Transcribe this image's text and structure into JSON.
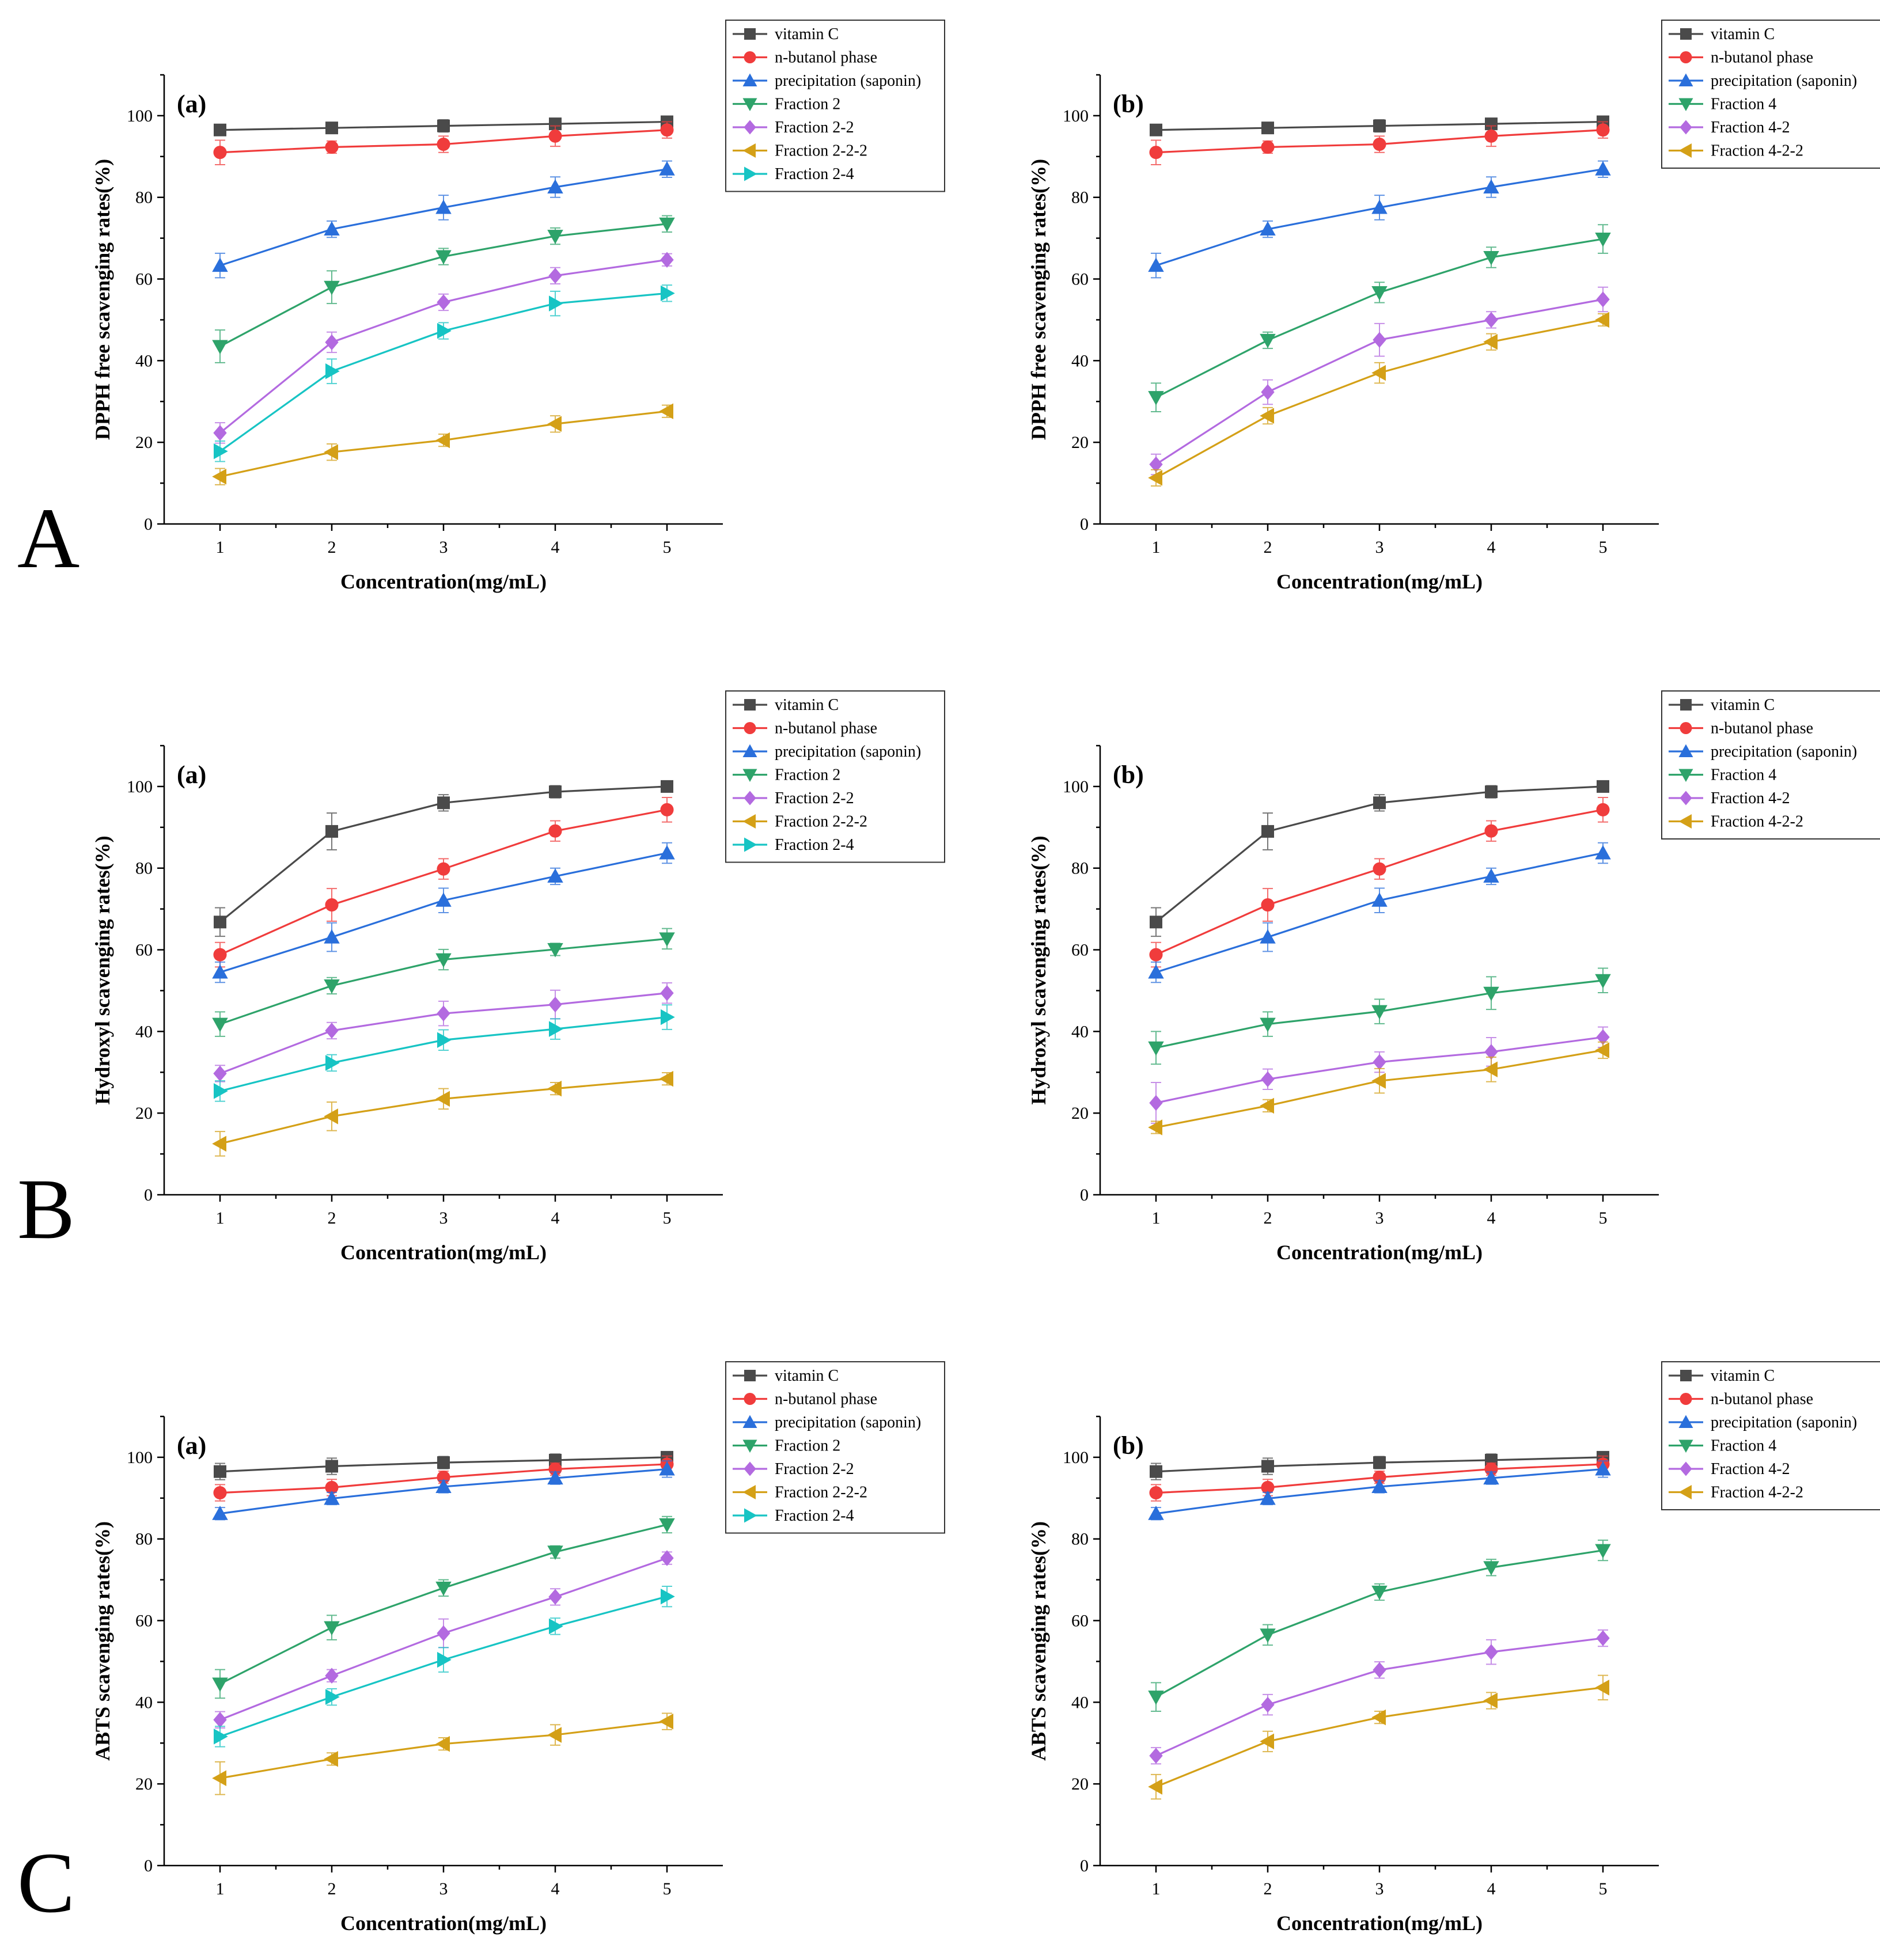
{
  "figure": {
    "x_label": "Concentration(mg/mL)",
    "x_ticks": [
      "1",
      "2",
      "3",
      "4",
      "5"
    ],
    "y_ticks": [
      "0",
      "20",
      "40",
      "60",
      "80",
      "100"
    ]
  },
  "colors": {
    "vitamin C": "#4a4a4a",
    "n-butanol phase": "#f03c3c",
    "precipitation (saponin)": "#2a6fdb",
    "Fraction 2": "#2ea36a",
    "Fraction 4": "#2ea36a",
    "Fraction 2-2": "#b36ae0",
    "Fraction 4-2": "#b36ae0",
    "Fraction 2-2-2": "#d4a017",
    "Fraction 4-2-2": "#d4a017",
    "Fraction 2-4": "#17c4c4"
  },
  "markers": {
    "vitamin C": "square",
    "n-butanol phase": "circle",
    "precipitation (saponin)": "triangle-up",
    "Fraction 2": "triangle-down",
    "Fraction 4": "triangle-down",
    "Fraction 2-2": "diamond",
    "Fraction 4-2": "diamond",
    "Fraction 2-2-2": "triangle-left",
    "Fraction 4-2-2": "triangle-left",
    "Fraction 2-4": "triangle-right"
  },
  "chart_data": [
    {
      "type": "line",
      "row": "A",
      "panel": "(a)",
      "title": "",
      "xlabel": "Concentration(mg/mL)",
      "ylabel": "DPPH free scavenging rates(%)",
      "x": [
        1,
        2,
        3,
        4,
        5
      ],
      "xlim": [
        0.5,
        5.5
      ],
      "ylim": [
        0,
        110
      ],
      "legend_position": "top-right outside",
      "series": [
        {
          "name": "vitamin C",
          "values": [
            96.5,
            97.0,
            97.5,
            98.0,
            98.5
          ],
          "errors": [
            1.0,
            1.0,
            1.5,
            1.0,
            1.0
          ]
        },
        {
          "name": "n-butanol phase",
          "values": [
            91.0,
            92.3,
            93.0,
            95.0,
            96.5
          ],
          "errors": [
            3.0,
            1.5,
            2.0,
            2.5,
            2.0
          ]
        },
        {
          "name": "precipitation (saponin)",
          "values": [
            63.3,
            72.2,
            77.5,
            82.5,
            86.9
          ],
          "errors": [
            3.0,
            2.0,
            3.0,
            2.5,
            2.0
          ]
        },
        {
          "name": "Fraction 2",
          "values": [
            43.5,
            58.0,
            65.5,
            70.5,
            73.5
          ],
          "errors": [
            4.0,
            4.0,
            2.0,
            2.0,
            2.0
          ]
        },
        {
          "name": "Fraction 2-2",
          "values": [
            22.3,
            44.5,
            54.3,
            60.8,
            64.7
          ],
          "errors": [
            2.5,
            2.5,
            2.0,
            2.0,
            1.5
          ]
        },
        {
          "name": "Fraction 2-2-2",
          "values": [
            11.6,
            17.6,
            20.5,
            24.5,
            27.6
          ],
          "errors": [
            2.0,
            2.0,
            1.5,
            2.0,
            1.5
          ]
        },
        {
          "name": "Fraction 2-4",
          "values": [
            17.8,
            37.4,
            47.3,
            54.0,
            56.5
          ],
          "errors": [
            2.5,
            3.0,
            2.0,
            3.0,
            2.0
          ]
        }
      ]
    },
    {
      "type": "line",
      "row": "A",
      "panel": "(b)",
      "title": "",
      "xlabel": "Concentration(mg/mL)",
      "ylabel": "DPPH free scavenging rates(%)",
      "x": [
        1,
        2,
        3,
        4,
        5
      ],
      "xlim": [
        0.5,
        5.5
      ],
      "ylim": [
        0,
        110
      ],
      "legend_position": "top-right outside",
      "series": [
        {
          "name": "vitamin C",
          "values": [
            96.5,
            97.0,
            97.5,
            98.0,
            98.5
          ],
          "errors": [
            1.0,
            1.0,
            1.5,
            1.0,
            1.0
          ]
        },
        {
          "name": "n-butanol phase",
          "values": [
            91.0,
            92.3,
            93.0,
            95.0,
            96.5
          ],
          "errors": [
            3.0,
            1.5,
            2.0,
            2.5,
            2.0
          ]
        },
        {
          "name": "precipitation (saponin)",
          "values": [
            63.3,
            72.2,
            77.5,
            82.5,
            86.9
          ],
          "errors": [
            3.0,
            2.0,
            3.0,
            2.5,
            2.0
          ]
        },
        {
          "name": "Fraction 4",
          "values": [
            31.0,
            45.0,
            56.7,
            65.3,
            69.8
          ],
          "errors": [
            3.5,
            2.0,
            2.5,
            2.5,
            3.5
          ]
        },
        {
          "name": "Fraction 4-2",
          "values": [
            14.6,
            32.3,
            45.1,
            50.0,
            55.0
          ],
          "errors": [
            2.5,
            3.0,
            4.0,
            2.0,
            3.0
          ]
        },
        {
          "name": "Fraction 4-2-2",
          "values": [
            11.3,
            26.5,
            37.0,
            44.6,
            50.0
          ],
          "errors": [
            2.0,
            2.0,
            2.5,
            2.0,
            1.5
          ]
        }
      ]
    },
    {
      "type": "line",
      "row": "B",
      "panel": "(a)",
      "title": "",
      "xlabel": "Concentration(mg/mL)",
      "ylabel": "Hydroxyl scavenging rates(%)",
      "x": [
        1,
        2,
        3,
        4,
        5
      ],
      "xlim": [
        0.5,
        5.5
      ],
      "ylim": [
        0,
        110
      ],
      "legend_position": "top-right outside",
      "series": [
        {
          "name": "vitamin C",
          "values": [
            66.8,
            89.0,
            96.0,
            98.7,
            100.0
          ],
          "errors": [
            3.5,
            4.5,
            2.0,
            1.5,
            0.5
          ]
        },
        {
          "name": "n-butanol phase",
          "values": [
            58.8,
            71.0,
            79.8,
            89.1,
            94.3
          ],
          "errors": [
            3.0,
            4.0,
            2.5,
            2.5,
            3.0
          ]
        },
        {
          "name": "precipitation (saponin)",
          "values": [
            54.5,
            63.1,
            72.1,
            78.0,
            83.7
          ],
          "errors": [
            2.5,
            3.5,
            3.0,
            2.0,
            2.5
          ]
        },
        {
          "name": "Fraction 2",
          "values": [
            41.8,
            51.2,
            57.6,
            60.1,
            62.7
          ],
          "errors": [
            3.0,
            2.0,
            2.5,
            1.5,
            2.5
          ]
        },
        {
          "name": "Fraction 2-2",
          "values": [
            29.7,
            40.2,
            44.4,
            46.6,
            49.4
          ],
          "errors": [
            2.0,
            2.0,
            3.0,
            3.5,
            2.5
          ]
        },
        {
          "name": "Fraction 2-2-2",
          "values": [
            12.5,
            19.2,
            23.5,
            26.0,
            28.4
          ],
          "errors": [
            3.0,
            3.5,
            2.5,
            1.5,
            1.5
          ]
        },
        {
          "name": "Fraction 2-4",
          "values": [
            25.4,
            32.3,
            37.9,
            40.6,
            43.5
          ],
          "errors": [
            2.5,
            2.0,
            2.5,
            2.5,
            3.0
          ]
        }
      ]
    },
    {
      "type": "line",
      "row": "B",
      "panel": "(b)",
      "title": "",
      "xlabel": "Concentration(mg/mL)",
      "ylabel": "Hydroxyl scavenging rates(%)",
      "x": [
        1,
        2,
        3,
        4,
        5
      ],
      "xlim": [
        0.5,
        5.5
      ],
      "ylim": [
        0,
        110
      ],
      "legend_position": "top-right outside",
      "series": [
        {
          "name": "vitamin C",
          "values": [
            66.8,
            89.0,
            96.0,
            98.7,
            100.0
          ],
          "errors": [
            3.5,
            4.5,
            2.0,
            1.5,
            0.5
          ]
        },
        {
          "name": "n-butanol phase",
          "values": [
            58.8,
            71.0,
            79.8,
            89.1,
            94.3
          ],
          "errors": [
            3.0,
            4.0,
            2.5,
            2.5,
            3.0
          ]
        },
        {
          "name": "precipitation (saponin)",
          "values": [
            54.5,
            63.1,
            72.1,
            78.0,
            83.7
          ],
          "errors": [
            2.5,
            3.5,
            3.0,
            2.0,
            2.5
          ]
        },
        {
          "name": "Fraction 4",
          "values": [
            36.0,
            41.8,
            44.9,
            49.4,
            52.5
          ],
          "errors": [
            4.0,
            3.0,
            3.0,
            4.0,
            3.0
          ]
        },
        {
          "name": "Fraction 4-2",
          "values": [
            22.5,
            28.3,
            32.5,
            35.0,
            38.6
          ],
          "errors": [
            5.0,
            2.5,
            2.5,
            3.5,
            2.5
          ]
        },
        {
          "name": "Fraction 4-2-2",
          "values": [
            16.5,
            21.8,
            27.9,
            30.7,
            35.4
          ],
          "errors": [
            1.5,
            1.5,
            3.0,
            3.0,
            2.0
          ]
        }
      ]
    },
    {
      "type": "line",
      "row": "C",
      "panel": "(a)",
      "title": "",
      "xlabel": "Concentration(mg/mL)",
      "ylabel": "ABTS scavenging rates(%)",
      "x": [
        1,
        2,
        3,
        4,
        5
      ],
      "xlim": [
        0.5,
        5.5
      ],
      "ylim": [
        0,
        110
      ],
      "legend_position": "top-right outside",
      "series": [
        {
          "name": "vitamin C",
          "values": [
            96.5,
            97.8,
            98.7,
            99.3,
            100.0
          ],
          "errors": [
            2.0,
            2.0,
            1.5,
            1.5,
            1.0
          ]
        },
        {
          "name": "n-butanol phase",
          "values": [
            91.3,
            92.6,
            95.1,
            97.1,
            98.3
          ],
          "errors": [
            2.0,
            2.0,
            1.5,
            1.5,
            2.0
          ]
        },
        {
          "name": "precipitation (saponin)",
          "values": [
            86.2,
            89.9,
            92.8,
            94.9,
            97.1
          ],
          "errors": [
            1.5,
            1.5,
            1.5,
            1.5,
            2.0
          ]
        },
        {
          "name": "Fraction 2",
          "values": [
            44.5,
            58.3,
            68.0,
            76.8,
            83.5
          ],
          "errors": [
            3.5,
            3.0,
            2.0,
            1.5,
            2.0
          ]
        },
        {
          "name": "Fraction 2-2",
          "values": [
            35.7,
            46.5,
            56.9,
            65.8,
            75.3
          ],
          "errors": [
            2.0,
            1.5,
            3.5,
            2.0,
            1.5
          ]
        },
        {
          "name": "Fraction 2-2-2",
          "values": [
            21.4,
            26.1,
            29.8,
            32.0,
            35.3
          ],
          "errors": [
            4.0,
            1.5,
            1.5,
            2.5,
            2.0
          ]
        },
        {
          "name": "Fraction 2-4",
          "values": [
            31.6,
            41.3,
            50.4,
            58.6,
            65.9
          ],
          "errors": [
            2.5,
            2.0,
            3.0,
            2.0,
            2.5
          ]
        }
      ]
    },
    {
      "type": "line",
      "row": "C",
      "panel": "(b)",
      "title": "",
      "xlabel": "Concentration(mg/mL)",
      "ylabel": "ABTS scavenging rates(%)",
      "x": [
        1,
        2,
        3,
        4,
        5
      ],
      "xlim": [
        0.5,
        5.5
      ],
      "ylim": [
        0,
        110
      ],
      "legend_position": "top-right outside",
      "series": [
        {
          "name": "vitamin C",
          "values": [
            96.5,
            97.8,
            98.7,
            99.3,
            100.0
          ],
          "errors": [
            2.0,
            2.0,
            1.5,
            1.5,
            1.0
          ]
        },
        {
          "name": "n-butanol phase",
          "values": [
            91.3,
            92.6,
            95.1,
            97.1,
            98.3
          ],
          "errors": [
            2.0,
            2.0,
            1.5,
            1.5,
            2.0
          ]
        },
        {
          "name": "precipitation (saponin)",
          "values": [
            86.2,
            89.9,
            92.8,
            94.9,
            97.1
          ],
          "errors": [
            1.5,
            1.5,
            1.5,
            1.5,
            2.0
          ]
        },
        {
          "name": "Fraction 4",
          "values": [
            41.3,
            56.5,
            67.0,
            73.0,
            77.2
          ],
          "errors": [
            3.5,
            2.5,
            2.0,
            2.0,
            2.5
          ]
        },
        {
          "name": "Fraction 4-2",
          "values": [
            26.9,
            39.4,
            47.9,
            52.3,
            55.7
          ],
          "errors": [
            2.0,
            2.5,
            2.0,
            3.0,
            2.0
          ]
        },
        {
          "name": "Fraction 4-2-2",
          "values": [
            19.3,
            30.4,
            36.3,
            40.4,
            43.6
          ],
          "errors": [
            3.0,
            2.5,
            1.5,
            2.0,
            3.0
          ]
        }
      ]
    }
  ]
}
